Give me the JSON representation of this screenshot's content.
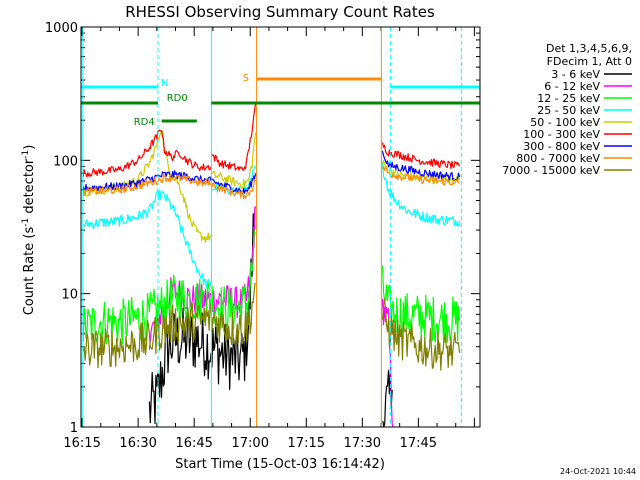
{
  "chart_data": {
    "type": "line",
    "title": "RHESSI Observing Summary Count Rates",
    "xlabel": "Start Time (15-Oct-03 16:14:42)",
    "ylabel_parts": [
      "Count Rate (s",
      "-1",
      " detector",
      "-1",
      ")"
    ],
    "y_scale": "log",
    "ylim": [
      1,
      1000
    ],
    "xlim_minutes": [
      974.7,
      1081.5
    ],
    "x_ticks": [
      {
        "m": 975,
        "label": "16:15"
      },
      {
        "m": 990,
        "label": "16:30"
      },
      {
        "m": 1005,
        "label": "16:45"
      },
      {
        "m": 1020,
        "label": "17:00"
      },
      {
        "m": 1035,
        "label": "17:15"
      },
      {
        "m": 1050,
        "label": "17:30"
      },
      {
        "m": 1065,
        "label": "17:45"
      }
    ],
    "y_ticks": [
      {
        "v": 1,
        "label": "1"
      },
      {
        "v": 10,
        "label": "10"
      },
      {
        "v": 100,
        "label": "100"
      },
      {
        "v": 1000,
        "label": "1000"
      }
    ],
    "legend_header": [
      "Det 1,3,4,5,6,9,",
      "FDecim 1, Att 0"
    ],
    "legend_placement": "right",
    "timestamp": "24-Oct-2021 10:44",
    "status_labels": {
      "night": "N",
      "saa": "S",
      "rd0": "RD0",
      "rd4": "RD4"
    },
    "night_intervals": [
      [
        974.7,
        995.3
      ],
      [
        1057.5,
        1081.5
      ]
    ],
    "night_level": 0.85,
    "saa_interval": [
      1021.7,
      1055.1
    ],
    "saa_level": 0.87,
    "decimation_bars": [
      {
        "label": "RD0",
        "level": 0.81,
        "segments": [
          [
            974.7,
            995.3
          ],
          [
            1009.6,
            1081.5
          ]
        ]
      },
      {
        "label": "RD4",
        "level": 0.765,
        "segments": [
          [
            996.3,
            1005.7
          ]
        ]
      }
    ],
    "orbit_markers_dashed": [
      995.3,
      1057.5,
      1076.5
    ],
    "orbit_markers_solid": [
      975.2,
      1009.6,
      1021.7,
      1055.1
    ],
    "series": [
      {
        "name": "3 - 6 keV",
        "color": "#000000",
        "noise": 0.25,
        "segments": [
          [
            [
              993,
              1.3
            ],
            [
              994,
              1.5
            ],
            [
              995,
              1.6
            ],
            [
              996,
              2.2
            ],
            [
              998,
              4.0
            ],
            [
              1000,
              4.5
            ],
            [
              1003,
              4.5
            ],
            [
              1006,
              4.5
            ],
            [
              1009,
              4.0
            ],
            [
              1012,
              3.6
            ],
            [
              1015,
              3.3
            ],
            [
              1017.5,
              3.2
            ],
            [
              1018.5,
              3.6
            ],
            [
              1019.5,
              6.0
            ],
            [
              1020.2,
              12
            ],
            [
              1020.8,
              28
            ],
            [
              1021.3,
              45
            ]
          ],
          [
            [
              1055.5,
              1.2
            ],
            [
              1057,
              1.5
            ],
            [
              1058,
              1.9
            ]
          ]
        ]
      },
      {
        "name": "6 - 12 keV",
        "color": "#ff00ff",
        "noise": 0.12,
        "segments": [
          [
            [
              993,
              5.0
            ],
            [
              995,
              6.0
            ],
            [
              997,
              8.0
            ],
            [
              999,
              10.5
            ],
            [
              1002,
              9.8
            ],
            [
              1005,
              9.0
            ],
            [
              1008,
              9.0
            ],
            [
              1011,
              9.0
            ],
            [
              1014,
              9.0
            ],
            [
              1017,
              8.5
            ],
            [
              1019,
              9.0
            ],
            [
              1020.3,
              14
            ],
            [
              1021,
              28
            ],
            [
              1021.5,
              45
            ]
          ],
          [
            [
              1055.4,
              8.0
            ],
            [
              1057,
              6.0
            ],
            [
              1058,
              1.3
            ],
            [
              1058.2,
              1.0
            ]
          ]
        ]
      },
      {
        "name": "12 - 25 keV",
        "color": "#00ff00",
        "noise": 0.18,
        "segments": [
          [
            [
              975.3,
              5.5
            ],
            [
              980,
              6.2
            ],
            [
              985,
              6.0
            ],
            [
              990,
              6.5
            ],
            [
              993,
              6.8
            ],
            [
              995,
              7.5
            ],
            [
              996,
              7.8
            ],
            [
              998,
              8.5
            ],
            [
              1000,
              9.5
            ],
            [
              1003,
              9.2
            ],
            [
              1006,
              9.0
            ],
            [
              1009.5,
              9.3
            ],
            [
              1012,
              8.0
            ],
            [
              1015,
              7.5
            ],
            [
              1018,
              8.0
            ],
            [
              1019.5,
              9.0
            ],
            [
              1020.5,
              15
            ],
            [
              1021.3,
              28
            ]
          ],
          [
            [
              1055.4,
              11
            ],
            [
              1057,
              8.0
            ],
            [
              1059,
              7.0
            ],
            [
              1065,
              6.7
            ],
            [
              1070,
              6.5
            ],
            [
              1076,
              6.3
            ]
          ]
        ]
      },
      {
        "name": "25 - 50 keV",
        "color": "#00ffff",
        "noise": 0.04,
        "segments": [
          [
            [
              975.3,
              33
            ],
            [
              980,
              34
            ],
            [
              985,
              35
            ],
            [
              990,
              38
            ],
            [
              993,
              42
            ],
            [
              995.3,
              55
            ],
            [
              996.5,
              55
            ],
            [
              998,
              50
            ],
            [
              1000,
              40
            ],
            [
              1002,
              28
            ],
            [
              1004,
              20
            ],
            [
              1006,
              15
            ],
            [
              1008,
              12
            ],
            [
              1009.5,
              11.5
            ]
          ],
          [
            [
              1009.7,
              62
            ],
            [
              1012,
              62
            ],
            [
              1015,
              60
            ],
            [
              1018,
              58
            ],
            [
              1019.5,
              60
            ],
            [
              1020.5,
              75
            ],
            [
              1021.4,
              90
            ]
          ],
          [
            [
              1055.4,
              90
            ],
            [
              1057,
              60
            ],
            [
              1059,
              50
            ],
            [
              1062,
              42
            ],
            [
              1066,
              38
            ],
            [
              1070,
              36
            ],
            [
              1076,
              35
            ]
          ]
        ]
      },
      {
        "name": "50 - 100 keV",
        "color": "#cccc00",
        "noise": 0.035,
        "segments": [
          [
            [
              975.3,
              58
            ],
            [
              980,
              60
            ],
            [
              985,
              62
            ],
            [
              990,
              72
            ],
            [
              993,
              95
            ],
            [
              995,
              130
            ],
            [
              996.3,
              180
            ],
            [
              997,
              120
            ],
            [
              998.5,
              85
            ],
            [
              1000,
              75
            ],
            [
              1002,
              55
            ],
            [
              1004,
              35
            ],
            [
              1006,
              28
            ],
            [
              1008,
              26
            ],
            [
              1009.5,
              27
            ]
          ],
          [
            [
              1009.7,
              78
            ],
            [
              1012,
              75
            ],
            [
              1015,
              70
            ],
            [
              1018,
              66
            ],
            [
              1019.5,
              70
            ],
            [
              1020.5,
              95
            ],
            [
              1021.4,
              160
            ]
          ],
          [
            [
              1055.4,
              95
            ],
            [
              1057,
              85
            ],
            [
              1060,
              78
            ],
            [
              1065,
              74
            ],
            [
              1070,
              72
            ],
            [
              1076,
              71
            ]
          ]
        ]
      },
      {
        "name": "100 - 300 keV",
        "color": "#ff0000",
        "noise": 0.03,
        "segments": [
          [
            [
              975.3,
              80
            ],
            [
              980,
              82
            ],
            [
              985,
              85
            ],
            [
              990,
              100
            ],
            [
              993,
              125
            ],
            [
              995,
              150
            ],
            [
              996.3,
              175
            ],
            [
              997,
              120
            ],
            [
              999,
              105
            ],
            [
              1001,
              115
            ],
            [
              1003,
              100
            ],
            [
              1005,
              92
            ],
            [
              1007,
              88
            ],
            [
              1009.5,
              90
            ]
          ],
          [
            [
              1009.7,
              110
            ],
            [
              1012,
              95
            ],
            [
              1015,
              90
            ],
            [
              1018,
              85
            ],
            [
              1019,
              95
            ],
            [
              1020,
              140
            ],
            [
              1021,
              210
            ],
            [
              1021.5,
              270
            ]
          ],
          [
            [
              1055.4,
              130
            ],
            [
              1057,
              115
            ],
            [
              1060,
              110
            ],
            [
              1065,
              100
            ],
            [
              1070,
              95
            ],
            [
              1076,
              90
            ]
          ]
        ]
      },
      {
        "name": "300 - 800 keV",
        "color": "#0000ff",
        "noise": 0.03,
        "segments": [
          [
            [
              975.3,
              62
            ],
            [
              980,
              63
            ],
            [
              985,
              64
            ],
            [
              990,
              68
            ],
            [
              993,
              72
            ],
            [
              995,
              75
            ],
            [
              997,
              78
            ],
            [
              1000,
              78
            ],
            [
              1003,
              76
            ],
            [
              1006,
              72
            ],
            [
              1009.5,
              70
            ]
          ],
          [
            [
              1009.7,
              70
            ],
            [
              1012,
              66
            ],
            [
              1015,
              62
            ],
            [
              1018,
              58
            ],
            [
              1019.5,
              60
            ],
            [
              1020.5,
              70
            ],
            [
              1021.4,
              80
            ]
          ],
          [
            [
              1055.4,
              115
            ],
            [
              1057,
              92
            ],
            [
              1060,
              88
            ],
            [
              1065,
              82
            ],
            [
              1070,
              78
            ],
            [
              1076,
              75
            ]
          ]
        ]
      },
      {
        "name": "800 - 7000 keV",
        "color": "#ff8800",
        "noise": 0.03,
        "segments": [
          [
            [
              975.3,
              58
            ],
            [
              980,
              59
            ],
            [
              985,
              60
            ],
            [
              990,
              64
            ],
            [
              993,
              68
            ],
            [
              995,
              70
            ],
            [
              997,
              74
            ],
            [
              1000,
              74
            ],
            [
              1003,
              72
            ],
            [
              1006,
              68
            ],
            [
              1009.5,
              67
            ]
          ],
          [
            [
              1009.7,
              66
            ],
            [
              1012,
              62
            ],
            [
              1015,
              58
            ],
            [
              1018,
              55
            ],
            [
              1019.5,
              56
            ],
            [
              1020.5,
              62
            ],
            [
              1021.4,
              70
            ]
          ],
          [
            [
              1055.4,
              90
            ],
            [
              1057,
              80
            ],
            [
              1060,
              76
            ],
            [
              1065,
              72
            ],
            [
              1070,
              70
            ],
            [
              1076,
              68
            ]
          ]
        ]
      },
      {
        "name": "7000 - 15000 keV",
        "color": "#808000",
        "noise": 0.15,
        "segments": [
          [
            [
              975.3,
              3.8
            ],
            [
              980,
              3.9
            ],
            [
              985,
              4.0
            ],
            [
              990,
              4.2
            ],
            [
              993,
              4.5
            ],
            [
              995,
              5.0
            ],
            [
              997,
              5.5
            ],
            [
              1000,
              6.0
            ],
            [
              1003,
              6.0
            ],
            [
              1006,
              6.2
            ],
            [
              1009.5,
              6.5
            ],
            [
              1012,
              6.0
            ],
            [
              1015,
              5.5
            ],
            [
              1018,
              5.5
            ],
            [
              1019.5,
              6.0
            ],
            [
              1020.5,
              8.0
            ],
            [
              1021.3,
              12
            ]
          ],
          [
            [
              1055.4,
              7.0
            ],
            [
              1057,
              5.5
            ],
            [
              1060,
              4.5
            ],
            [
              1065,
              4.0
            ],
            [
              1070,
              3.8
            ],
            [
              1076,
              3.6
            ]
          ]
        ]
      }
    ]
  }
}
